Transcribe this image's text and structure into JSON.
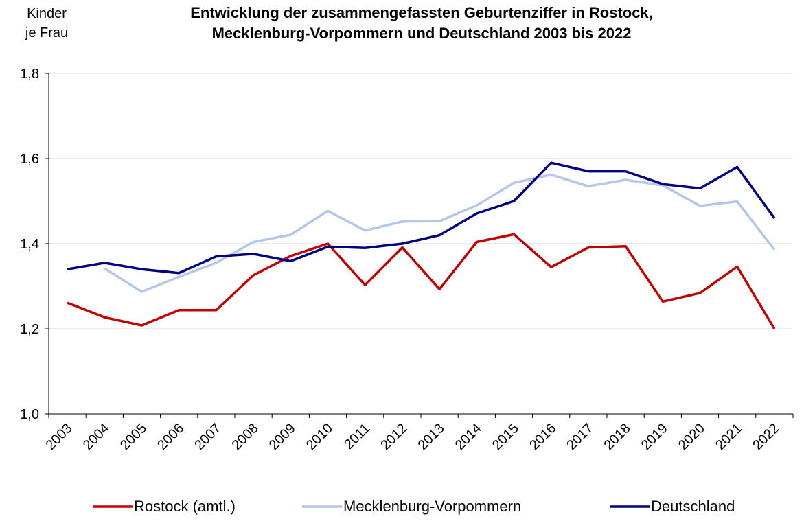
{
  "chart_data": {
    "type": "line",
    "title": [
      "Entwicklung der zusammengefassten Geburtenziffer in Rostock,",
      "Mecklenburg-Vorpommern und Deutschland 2003 bis 2022"
    ],
    "ylabel": [
      "Kinder",
      "je Frau"
    ],
    "categories": [
      "2003",
      "2004",
      "2005",
      "2006",
      "2007",
      "2008",
      "2009",
      "2010",
      "2011",
      "2012",
      "2013",
      "2014",
      "2015",
      "2016",
      "2017",
      "2018",
      "2019",
      "2020",
      "2021",
      "2022"
    ],
    "series": [
      {
        "name": "Rostock (amtl.)",
        "color": "#c00000",
        "values": [
          1.261,
          1.227,
          1.208,
          1.244,
          1.244,
          1.326,
          1.371,
          1.4,
          1.303,
          1.391,
          1.293,
          1.404,
          1.422,
          1.345,
          1.391,
          1.394,
          1.264,
          1.284,
          1.346,
          1.2
        ]
      },
      {
        "name": "Mecklenburg-Vorpommern",
        "color": "#b4c7e7",
        "values": [
          null,
          1.342,
          1.287,
          1.322,
          1.355,
          1.404,
          1.421,
          1.477,
          1.431,
          1.452,
          1.453,
          1.49,
          1.543,
          1.562,
          1.535,
          1.55,
          1.537,
          1.489,
          1.499,
          1.386
        ]
      },
      {
        "name": "Deutschland",
        "color": "#000080",
        "values": [
          1.34,
          1.355,
          1.34,
          1.331,
          1.37,
          1.376,
          1.359,
          1.393,
          1.39,
          1.4,
          1.42,
          1.471,
          1.5,
          1.59,
          1.57,
          1.57,
          1.54,
          1.53,
          1.58,
          1.46
        ]
      }
    ],
    "ylim": [
      1.0,
      1.8
    ],
    "yticks": [
      {
        "value": 1.0,
        "label": "1,0"
      },
      {
        "value": 1.2,
        "label": "1,2"
      },
      {
        "value": 1.4,
        "label": "1,4"
      },
      {
        "value": 1.6,
        "label": "1,6"
      },
      {
        "value": 1.8,
        "label": "1,8"
      }
    ],
    "grid": true
  }
}
